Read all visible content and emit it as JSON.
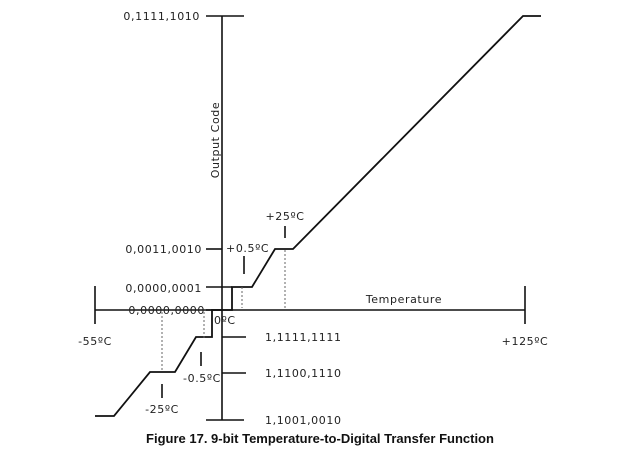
{
  "caption": "Figure 17.  9-bit Temperature-to-Digital Transfer Function",
  "chart_data": {
    "type": "line",
    "xlabel": "Temperature",
    "ylabel": "Output Code",
    "x_tick_labels": {
      "x_min": "-55ºC",
      "x_max": "+125ºC",
      "x_zero": "0ºC",
      "x_half_pos": "+0.5ºC",
      "x_half_neg": "-0.5ºC",
      "x_25_pos": "+25ºC",
      "x_25_neg": "-25ºC"
    },
    "y_tick_labels": {
      "y_max": "0,1111,1010",
      "y_25": "0,0011,0010",
      "y_1": "0,0000,0001",
      "y_0": "0,0000,0000",
      "y_m1": "1,1111,1111",
      "y_m25": "1,1100,1110",
      "y_min": "1,1001,0010"
    },
    "transfer_function": [
      {
        "x": -55,
        "y": -55
      },
      {
        "x": -25,
        "y": -25
      },
      {
        "x": -0.5,
        "y": -1
      },
      {
        "x": 0,
        "y": 0
      },
      {
        "x": 0.5,
        "y": 1
      },
      {
        "x": 25,
        "y": 25
      },
      {
        "x": 125,
        "y": 125
      }
    ],
    "xlim": [
      -55,
      125
    ],
    "ylim": [
      -55,
      125
    ],
    "grid": false
  }
}
